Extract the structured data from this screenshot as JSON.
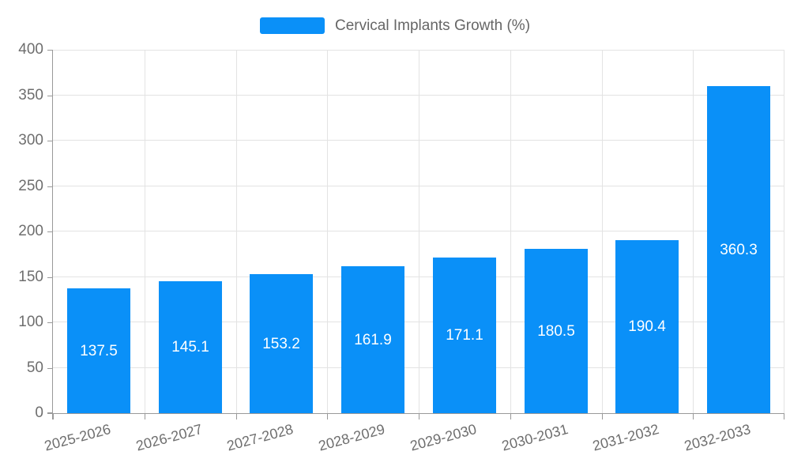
{
  "chart_data": {
    "type": "bar",
    "title": "Cervical Implants Growth (%)",
    "categories": [
      "2025-2026",
      "2026-2027",
      "2027-2028",
      "2028-2029",
      "2029-2030",
      "2030-2031",
      "2031-2032",
      "2032-2033"
    ],
    "values": [
      137.5,
      145.1,
      153.2,
      161.9,
      171.1,
      180.5,
      190.4,
      360.3
    ],
    "value_labels": [
      "137.5",
      "145.1",
      "153.2",
      "161.9",
      "171.1",
      "180.5",
      "190.4",
      "360.3"
    ],
    "xlabel": "",
    "ylabel": "",
    "ylim": [
      0,
      400
    ],
    "ytick_step": 50,
    "ytick_labels": [
      "0",
      "50",
      "100",
      "150",
      "200",
      "250",
      "300",
      "350",
      "400"
    ],
    "grid": "horizontal and vertical gridlines on",
    "legend_position": "top-center",
    "x_label_rotation_deg": -15,
    "colors": {
      "bar": "#0a90f8",
      "value_label": "#ffffff",
      "axis": "#999999",
      "grid": "#e3e3e3",
      "tick_text": "#6e6e6e",
      "legend_text": "#666666",
      "background": "#ffffff"
    }
  }
}
